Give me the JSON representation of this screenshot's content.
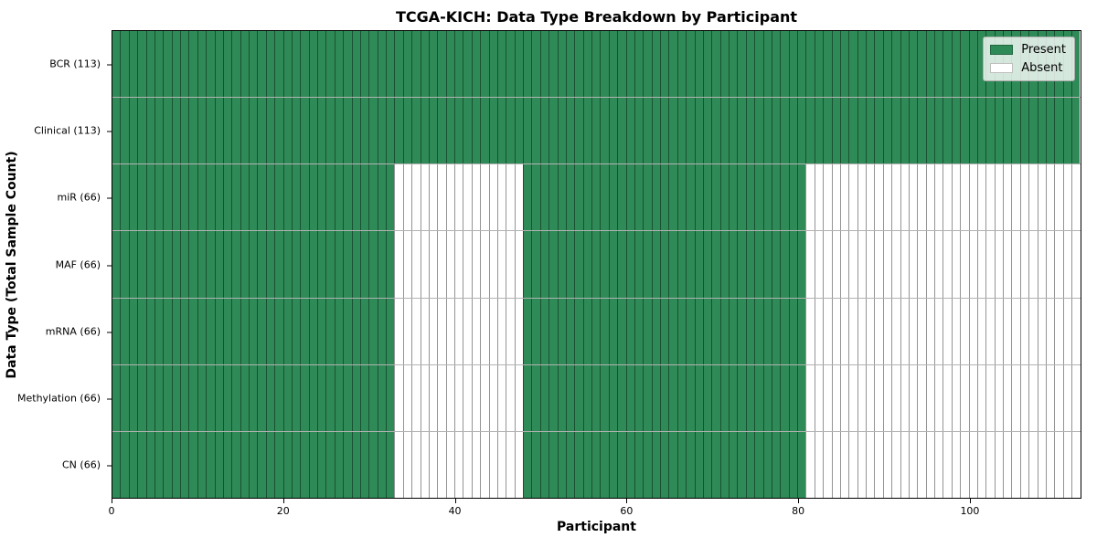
{
  "figure": {
    "title": "TCGA-KICH: Data Type Breakdown by Participant"
  },
  "chart_data": {
    "type": "heatmap",
    "title": "TCGA-KICH: Data Type Breakdown by Participant",
    "xlabel": "Participant",
    "ylabel": "Data Type (Total Sample Count)",
    "x_ticks": [
      0,
      20,
      40,
      60,
      80,
      100
    ],
    "x_range": [
      0,
      113
    ],
    "n_participants": 113,
    "grid": true,
    "legend_position": "upper-right",
    "colors": {
      "present": "#2e8b57",
      "absent": "#ffffff"
    },
    "legend": [
      {
        "label": "Present",
        "color": "#2e8b57"
      },
      {
        "label": "Absent",
        "color": "#ffffff"
      }
    ],
    "rows": [
      {
        "label": "BCR (113)",
        "data_type": "BCR",
        "total_samples": 113,
        "present_ranges": [
          [
            0,
            113
          ]
        ]
      },
      {
        "label": "Clinical (113)",
        "data_type": "Clinical",
        "total_samples": 113,
        "present_ranges": [
          [
            0,
            113
          ]
        ]
      },
      {
        "label": "miR (66)",
        "data_type": "miR",
        "total_samples": 66,
        "present_ranges": [
          [
            0,
            33
          ],
          [
            48,
            81
          ]
        ]
      },
      {
        "label": "MAF (66)",
        "data_type": "MAF",
        "total_samples": 66,
        "present_ranges": [
          [
            0,
            33
          ],
          [
            48,
            81
          ]
        ]
      },
      {
        "label": "mRNA (66)",
        "data_type": "mRNA",
        "total_samples": 66,
        "present_ranges": [
          [
            0,
            33
          ],
          [
            48,
            81
          ]
        ]
      },
      {
        "label": "Methylation (66)",
        "data_type": "Methylation",
        "total_samples": 66,
        "present_ranges": [
          [
            0,
            33
          ],
          [
            48,
            81
          ]
        ]
      },
      {
        "label": "CN (66)",
        "data_type": "CN",
        "total_samples": 66,
        "present_ranges": [
          [
            0,
            33
          ],
          [
            48,
            81
          ]
        ]
      }
    ]
  }
}
